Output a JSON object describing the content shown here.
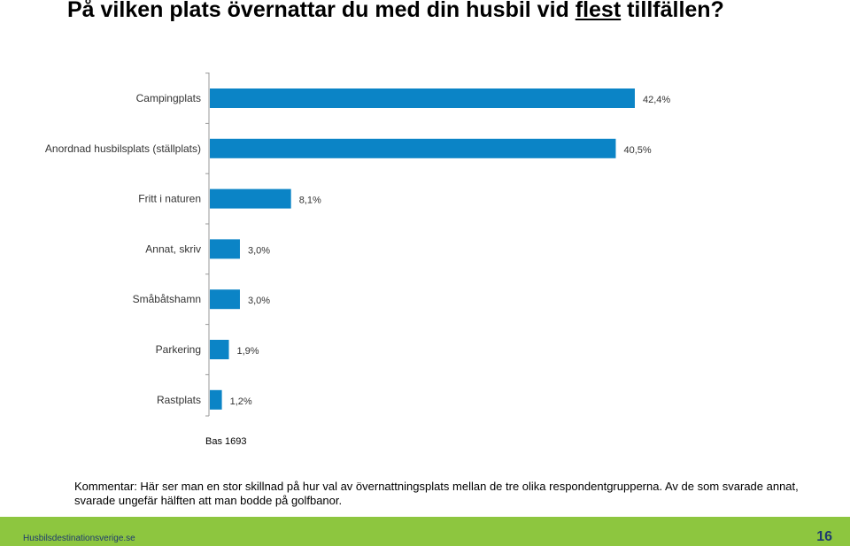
{
  "title": {
    "before": "På vilken plats övernattar du med din husbil vid ",
    "underlined": "flest",
    "after": " tillfällen?"
  },
  "chart_data": {
    "type": "bar",
    "orientation": "horizontal",
    "categories": [
      "Campingplats",
      "Anordnad husbilsplats (ställplats)",
      "Fritt i naturen",
      "Annat, skriv",
      "Småbåtshamn",
      "Parkering",
      "Rastplats"
    ],
    "values": [
      42.4,
      40.5,
      8.1,
      3.0,
      3.0,
      1.9,
      1.2
    ],
    "value_labels": [
      "42,4%",
      "40,5%",
      "8,1%",
      "3,0%",
      "3,0%",
      "1,9%",
      "1,2%"
    ],
    "xlim": [
      0,
      50
    ],
    "grid": false,
    "bar_color": "#0b84c6"
  },
  "base_note": "Bas 1693",
  "comment": "Kommentar: Här ser man en stor skillnad på hur val av övernattningsplats mellan de tre olika respondentgrupperna. Av de som svarade annat, svarade ungefär hälften att man bodde på golfbanor.",
  "footer": {
    "site": "Husbilsdestinationsverige.se",
    "page_number": "16",
    "color": "#8dc63f"
  }
}
